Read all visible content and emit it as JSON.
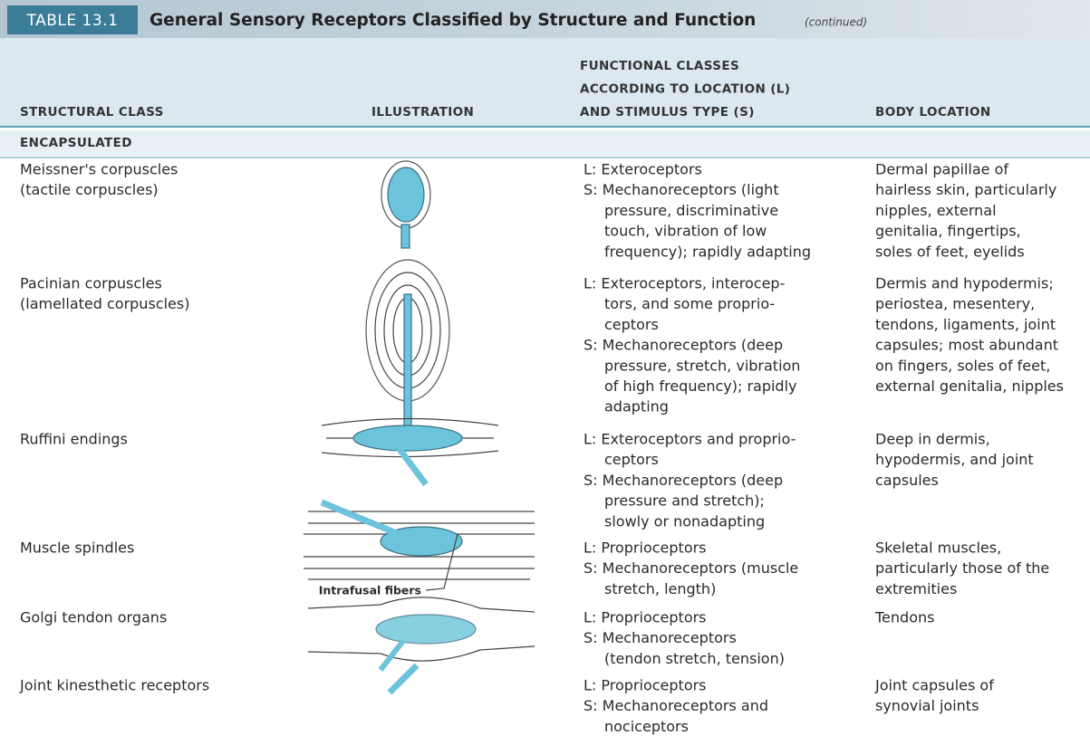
{
  "header": {
    "table_number": "TABLE 13.1",
    "title": "General Sensory Receptors Classified by Structure and Function",
    "note": "(continued)"
  },
  "table": {
    "columns": [
      [
        "STRUCTURAL CLASS"
      ],
      [
        "ILLUSTRATION"
      ],
      [
        "FUNCTIONAL CLASSES",
        "ACCORDING TO LOCATION (L)",
        "AND STIMULUS TYPE (S)"
      ],
      [
        "BODY LOCATION"
      ]
    ],
    "section": "ENCAPSULATED",
    "rows": [
      {
        "structural": [
          "Meissner's corpuscles",
          "(tactile corpuscles)"
        ],
        "functional": [
          "L: Exteroceptors",
          "S: Mechanoreceptors (light",
          "pressure, discriminative",
          "touch, vibration of low",
          "frequency); rapidly adapting"
        ],
        "body": [
          "Dermal papillae of",
          "hairless skin, particularly",
          "nipples, external",
          "genitalia, fingertips,",
          "soles of feet, eyelids"
        ]
      },
      {
        "structural": [
          "Pacinian corpuscles",
          "(lamellated corpuscles)"
        ],
        "functional": [
          "L: Exteroceptors, interocep-",
          "tors, and some proprio-",
          "ceptors",
          "S: Mechanoreceptors (deep",
          "pressure, stretch, vibration",
          "of high frequency); rapidly",
          "adapting"
        ],
        "body": [
          "Dermis and hypodermis;",
          "periostea, mesentery,",
          "tendons, ligaments, joint",
          "capsules; most abundant",
          "on fingers, soles of feet,",
          "external genitalia, nipples"
        ]
      },
      {
        "structural": [
          "Ruffini endings"
        ],
        "functional": [
          "L: Exteroceptors and proprio-",
          "ceptors",
          "S: Mechanoreceptors (deep",
          "pressure and stretch);",
          "slowly or nonadapting"
        ],
        "body": [
          "Deep in dermis,",
          "hypodermis, and joint",
          "capsules"
        ]
      },
      {
        "structural": [
          "Muscle spindles"
        ],
        "functional": [
          "L: Proprioceptors",
          "S: Mechanoreceptors (muscle",
          "stretch, length)"
        ],
        "body": [
          "Skeletal muscles,",
          "particularly those of the",
          "extremities"
        ]
      },
      {
        "structural": [
          "Golgi tendon organs"
        ],
        "functional": [
          "L: Proprioceptors",
          "S: Mechanoreceptors",
          "(tendon stretch, tension)"
        ],
        "body": [
          "Tendons"
        ]
      },
      {
        "structural": [
          "Joint kinesthetic receptors"
        ],
        "functional": [
          "L: Proprioceptors",
          "S: Mechanoreceptors and",
          "nociceptors"
        ],
        "body": [
          "Joint capsules of",
          "synovial joints"
        ]
      }
    ]
  },
  "figure_labels": {
    "intrafusal": "Intrafusal fibers"
  }
}
